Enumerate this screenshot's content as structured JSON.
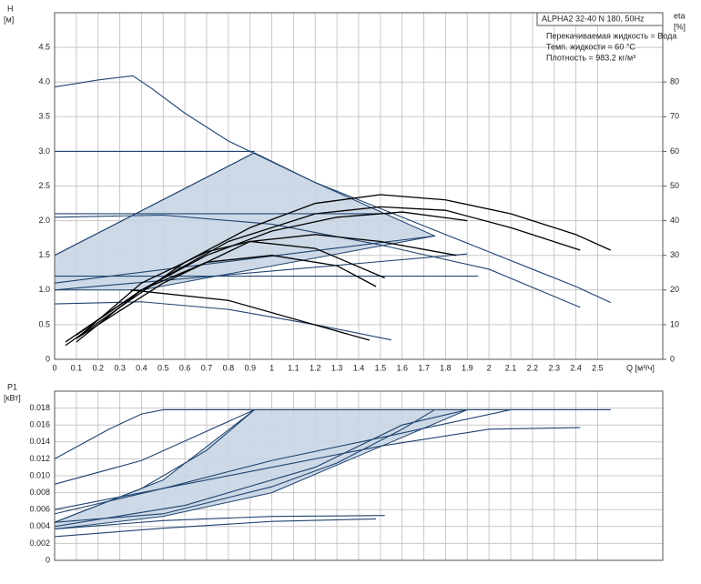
{
  "chart_data": [
    {
      "type": "line",
      "title": "ALPHA2 32-40 N 180, 50Hz",
      "annotations": [
        "Перекачиваемая жидкость = Вода",
        "Темп. жидкости = 60 °C",
        "Плотность = 983.2 кг/м³"
      ],
      "ylabel": "H",
      "yunit": "[м]",
      "y2label": "eta",
      "y2unit": "[%]",
      "xlabel": "Q [м³/ч]",
      "xlim": [
        0,
        2.8
      ],
      "ylim": [
        0,
        5
      ],
      "y2lim": [
        0,
        100
      ],
      "xticks": [
        0,
        0.1,
        0.2,
        0.3,
        0.4,
        0.5,
        0.6,
        0.7,
        0.8,
        0.9,
        1,
        1.1,
        1.2,
        1.3,
        1.4,
        1.5,
        1.6,
        1.7,
        1.8,
        1.9,
        2,
        2.1,
        2.2,
        2.3,
        2.4,
        2.5
      ],
      "yticks": [
        0,
        0.5,
        {
          "value": 1,
          "label": "1.0"
        },
        1.5,
        {
          "value": 2,
          "label": "2.0"
        },
        2.5,
        {
          "value": 3,
          "label": "3.0"
        },
        3.5,
        {
          "value": 4,
          "label": "4.0"
        },
        4.5
      ],
      "y2ticks": [
        0,
        10,
        20,
        30,
        40,
        50,
        60,
        70,
        80
      ],
      "grid": true,
      "xtick_labels": true,
      "series": [
        {
          "type": "area",
          "color": "#c8d5e3",
          "x": [
            0,
            0.92,
            1.2,
            1.45,
            1.75,
            0.4,
            0
          ],
          "values": [
            1.5,
            2.98,
            2.55,
            2.2,
            1.78,
            1.0,
            1.0
          ]
        },
        {
          "color": "#1f4470",
          "x": [
            0,
            0.2,
            0.36,
            0.45,
            0.6,
            0.8,
            1.0,
            1.2,
            1.4,
            1.6,
            1.8,
            2.0,
            2.2,
            2.4,
            2.56
          ],
          "values": [
            3.93,
            4.03,
            4.09,
            3.9,
            3.55,
            3.15,
            2.85,
            2.55,
            2.3,
            2.05,
            1.8,
            1.55,
            1.3,
            1.05,
            0.82
          ]
        },
        {
          "color": "#1f4470",
          "x": [
            0,
            0.92
          ],
          "values": [
            3.0,
            3.0
          ]
        },
        {
          "color": "#1f4470",
          "x": [
            0,
            1.55
          ],
          "values": [
            2.1,
            2.1
          ]
        },
        {
          "color": "#1f4470",
          "x": [
            0,
            1.95
          ],
          "values": [
            1.2,
            1.2
          ]
        },
        {
          "color": "#1f4470",
          "x": [
            0,
            0.92
          ],
          "values": [
            1.5,
            2.98
          ]
        },
        {
          "color": "#1f4470",
          "x": [
            0,
            1.75
          ],
          "values": [
            1.1,
            1.78
          ]
        },
        {
          "color": "#1f4470",
          "x": [
            0,
            1.9
          ],
          "values": [
            1.0,
            1.52
          ]
        },
        {
          "color": "#1f4470",
          "x": [
            0,
            0.5,
            1.0,
            1.5,
            2.0,
            2.42
          ],
          "values": [
            2.05,
            2.08,
            1.95,
            1.65,
            1.3,
            0.75
          ]
        },
        {
          "color": "#1f4470",
          "x": [
            0,
            0.4,
            0.8,
            1.2,
            1.55
          ],
          "values": [
            0.8,
            0.83,
            0.72,
            0.5,
            0.28
          ]
        },
        {
          "color": "#000000",
          "axis": "y2",
          "x": [
            0.05,
            0.3,
            0.6,
            0.9,
            1.2,
            1.5,
            1.8,
            2.1,
            2.4,
            2.56
          ],
          "values": [
            4,
            15,
            28,
            38,
            45,
            47.5,
            46,
            42,
            36,
            31.5
          ]
        },
        {
          "color": "#000000",
          "axis": "y2",
          "x": [
            0.05,
            0.4,
            0.8,
            1.2,
            1.5,
            1.8,
            2.1,
            2.42
          ],
          "values": [
            5,
            20,
            34,
            42,
            44,
            43,
            38,
            31.5
          ]
        },
        {
          "color": "#000000",
          "axis": "y2",
          "x": [
            0.1,
            0.4,
            0.7,
            1.0,
            1.3,
            1.6,
            1.9
          ],
          "values": [
            7,
            20,
            30,
            37,
            41,
            42.5,
            40
          ]
        },
        {
          "color": "#000000",
          "axis": "y2",
          "x": [
            0.1,
            0.5,
            0.9,
            1.2,
            1.5,
            1.85
          ],
          "values": [
            6,
            22,
            34,
            36,
            34,
            30
          ]
        },
        {
          "color": "#000000",
          "axis": "y2",
          "x": [
            0.1,
            0.4,
            0.7,
            0.9,
            1.2,
            1.52
          ],
          "values": [
            6,
            22,
            31,
            34,
            32,
            23.5
          ]
        },
        {
          "color": "#000000",
          "axis": "y2",
          "x": [
            0.1,
            0.4,
            0.7,
            1.0,
            1.3,
            1.48
          ],
          "values": [
            5,
            20,
            28,
            30,
            27,
            21
          ]
        },
        {
          "color": "#000000",
          "axis": "y2",
          "x": [
            0.35,
            0.8,
            1.45
          ],
          "values": [
            20,
            17,
            5.5
          ]
        }
      ]
    },
    {
      "type": "line",
      "ylabel": "P1",
      "yunit": "[кВт]",
      "xlim": [
        0,
        2.8
      ],
      "ylim": [
        0,
        0.02
      ],
      "xticks": [
        0,
        0.1,
        0.2,
        0.3,
        0.4,
        0.5,
        0.6,
        0.7,
        0.8,
        0.9,
        1,
        1.1,
        1.2,
        1.3,
        1.4,
        1.5,
        1.6,
        1.7,
        1.8,
        1.9,
        2,
        2.1,
        2.2,
        2.3,
        2.4,
        2.5
      ],
      "yticks": [
        0,
        0.002,
        0.004,
        0.006,
        0.008,
        {
          "value": 0.01,
          "label": "0.010"
        },
        0.012,
        0.014,
        0.016,
        0.018
      ],
      "grid": true,
      "xtick_labels": false,
      "series": [
        {
          "type": "area",
          "color": "#c8d5e3",
          "x": [
            0,
            0.5,
            0.92,
            1.9,
            1.0,
            0.5,
            0
          ],
          "values": [
            0.0045,
            0.0095,
            0.0178,
            0.0178,
            0.008,
            0.0052,
            0.0037
          ]
        },
        {
          "color": "#1f4470",
          "x": [
            0,
            0.25,
            0.4,
            0.5,
            2.56
          ],
          "values": [
            0.012,
            0.0155,
            0.0173,
            0.0178,
            0.0178
          ]
        },
        {
          "color": "#1f4470",
          "x": [
            0,
            0.4,
            0.92
          ],
          "values": [
            0.009,
            0.0118,
            0.0178
          ]
        },
        {
          "color": "#1f4470",
          "x": [
            0,
            0.5,
            1.0,
            1.5,
            2.1
          ],
          "values": [
            0.006,
            0.0085,
            0.0118,
            0.0145,
            0.0178
          ]
        },
        {
          "color": "#1f4470",
          "x": [
            0,
            0.4,
            0.7,
            0.92
          ],
          "values": [
            0.0045,
            0.0085,
            0.013,
            0.0178
          ]
        },
        {
          "color": "#1f4470",
          "x": [
            0,
            0.6,
            1.2,
            1.6,
            1.9
          ],
          "values": [
            0.004,
            0.0065,
            0.011,
            0.016,
            0.0178
          ]
        },
        {
          "color": "#1f4470",
          "x": [
            0,
            0.5,
            1.0,
            1.5,
            2.0,
            2.42
          ],
          "values": [
            0.0055,
            0.0085,
            0.011,
            0.0135,
            0.0155,
            0.0157
          ]
        },
        {
          "color": "#1f4470",
          "x": [
            0,
            0.5,
            1.0,
            1.3,
            1.6,
            1.75
          ],
          "values": [
            0.0045,
            0.0055,
            0.0087,
            0.0115,
            0.0155,
            0.0178
          ]
        },
        {
          "color": "#1f4470",
          "x": [
            0,
            0.5,
            1.0,
            1.52
          ],
          "values": [
            0.0037,
            0.0047,
            0.0052,
            0.0053
          ]
        },
        {
          "color": "#1f4470",
          "x": [
            0,
            0.5,
            1.0,
            1.48
          ],
          "values": [
            0.0028,
            0.0038,
            0.0046,
            0.0049
          ]
        }
      ]
    }
  ]
}
